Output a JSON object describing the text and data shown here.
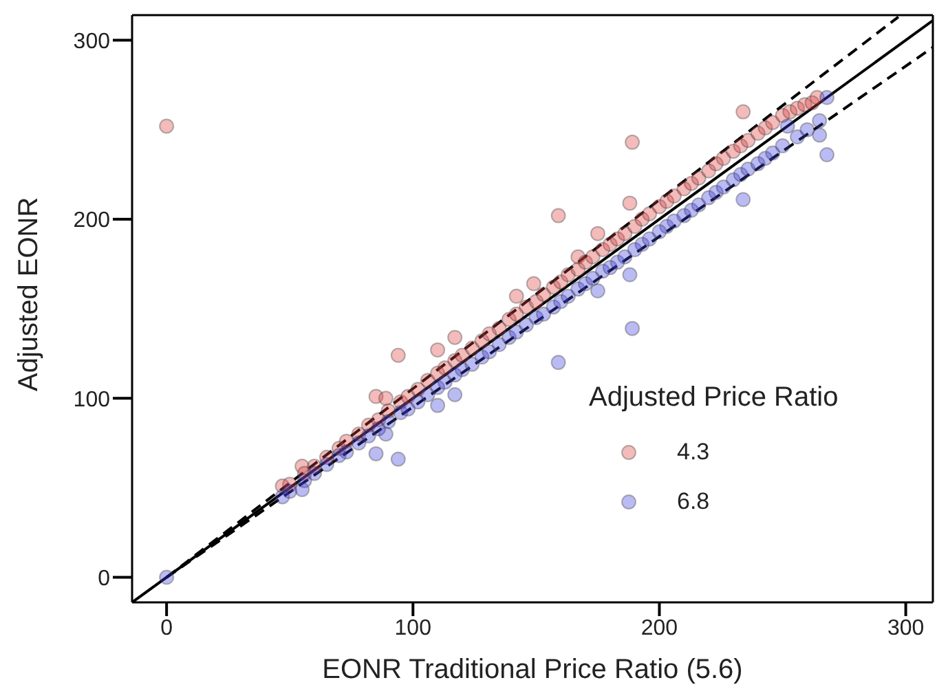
{
  "chart_data": {
    "type": "scatter",
    "xlabel": "EONR Traditional Price Ratio (5.6)",
    "ylabel": "Adjusted EONR",
    "legend_title": "Adjusted Price Ratio",
    "legend": "bottom right",
    "marker": "circle",
    "xlim": [
      -14,
      311
    ],
    "xticks": [
      0,
      100,
      200,
      300
    ],
    "ylim": [
      -14,
      314
    ],
    "yticks": [
      0,
      100,
      200,
      300
    ],
    "series": [
      {
        "name": "4.3",
        "color": "#e03c3c",
        "x": [
          0,
          189,
          159,
          234,
          94,
          117,
          110,
          85,
          89,
          55,
          47,
          142,
          149,
          175,
          188,
          167,
          50,
          56,
          60,
          65,
          70,
          73,
          78,
          82,
          86,
          90,
          95,
          98,
          102,
          106,
          110,
          113,
          117,
          120,
          124,
          128,
          131,
          135,
          139,
          142,
          146,
          150,
          153,
          157,
          160,
          163,
          167,
          170,
          173,
          177,
          180,
          183,
          186,
          190,
          193,
          196,
          200,
          203,
          206,
          210,
          213,
          216,
          220,
          223,
          226,
          230,
          233,
          236,
          240,
          243,
          246,
          250,
          253,
          256,
          259,
          262,
          264
        ],
        "values": [
          252,
          243,
          202,
          260,
          124,
          134,
          127,
          101,
          100,
          62,
          51,
          157,
          164,
          192,
          209,
          179,
          52,
          58,
          62,
          67,
          72,
          76,
          80,
          85,
          88,
          93,
          98,
          101,
          105,
          110,
          114,
          117,
          121,
          124,
          128,
          132,
          136,
          139,
          144,
          147,
          151,
          154,
          158,
          162,
          165,
          169,
          172,
          176,
          179,
          183,
          186,
          189,
          192,
          196,
          200,
          203,
          207,
          210,
          213,
          217,
          220,
          223,
          227,
          231,
          234,
          238,
          241,
          244,
          248,
          251,
          254,
          258,
          260,
          262,
          264,
          265,
          268
        ]
      },
      {
        "name": "6.8",
        "color": "#3c3ce0",
        "x": [
          0,
          189,
          159,
          234,
          94,
          85,
          110,
          117,
          268,
          265,
          188,
          175,
          89,
          55,
          47,
          50,
          56,
          60,
          65,
          70,
          73,
          78,
          82,
          86,
          90,
          95,
          98,
          102,
          106,
          110,
          113,
          117,
          120,
          124,
          128,
          131,
          135,
          139,
          142,
          146,
          150,
          153,
          157,
          160,
          163,
          167,
          170,
          173,
          177,
          180,
          183,
          186,
          190,
          193,
          196,
          200,
          203,
          206,
          210,
          213,
          216,
          220,
          223,
          226,
          230,
          233,
          236,
          240,
          243,
          246,
          250,
          252,
          256,
          260,
          265,
          268
        ],
        "values": [
          0,
          139,
          120,
          211,
          66,
          69,
          96,
          102,
          236,
          247,
          169,
          160,
          80,
          49,
          45,
          48,
          54,
          58,
          63,
          68,
          70,
          75,
          79,
          83,
          87,
          92,
          94,
          98,
          102,
          106,
          109,
          113,
          116,
          119,
          123,
          126,
          130,
          134,
          137,
          141,
          145,
          147,
          151,
          154,
          157,
          161,
          164,
          167,
          171,
          173,
          176,
          179,
          183,
          186,
          189,
          193,
          196,
          199,
          202,
          205,
          208,
          212,
          215,
          218,
          222,
          225,
          228,
          231,
          234,
          237,
          241,
          252,
          246,
          250,
          255,
          268
        ]
      },
      {
        "type": "line",
        "marker": "none",
        "color": "#000000",
        "line_style": "solid",
        "x": [
          -14,
          311
        ],
        "values": [
          -14,
          311
        ]
      },
      {
        "type": "line",
        "marker": "none",
        "color": "#000000",
        "line_style": "dashed",
        "x": [
          0,
          297
        ],
        "values": [
          0,
          313
        ]
      },
      {
        "type": "line",
        "marker": "none",
        "color": "#000000",
        "line_style": "dashed",
        "x": [
          0,
          311
        ],
        "values": [
          0,
          296
        ]
      }
    ]
  }
}
